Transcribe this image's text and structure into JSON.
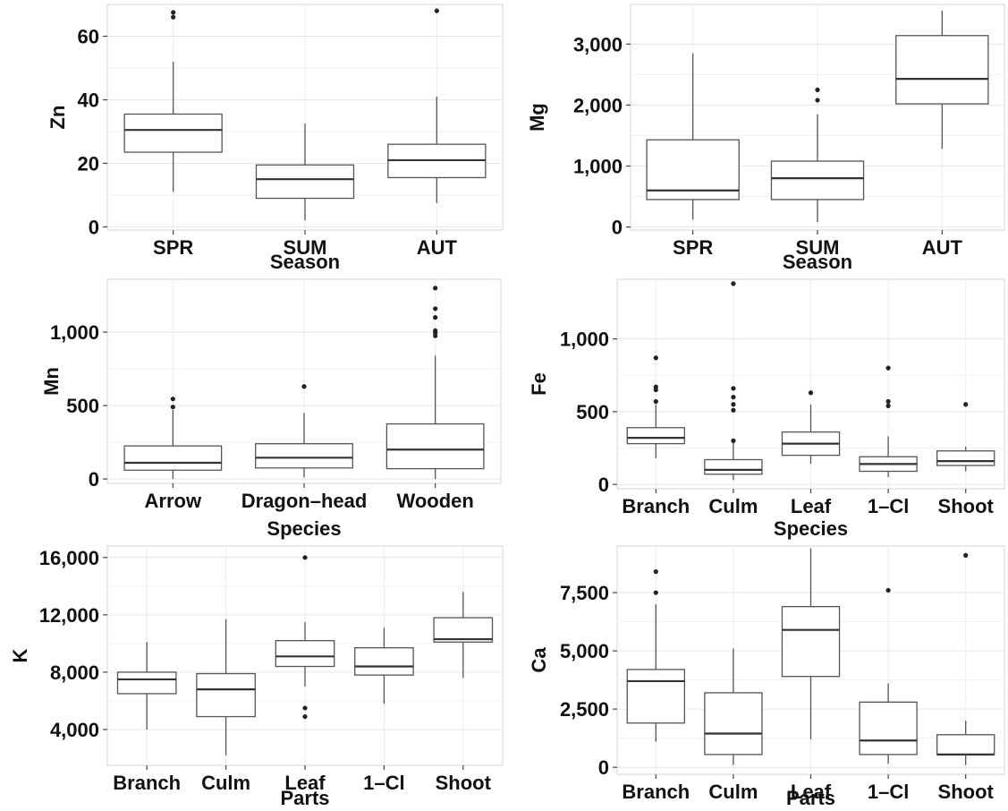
{
  "chart_data": [
    {
      "type": "box",
      "title": "",
      "xlabel": "Season",
      "ylabel": "Zn",
      "ylim": [
        -1,
        70
      ],
      "yticks": [
        0,
        20,
        40,
        60
      ],
      "ytick_labels": [
        "0",
        "20",
        "40",
        "60"
      ],
      "grid": true,
      "categories": [
        "SPR",
        "SUM",
        "AUT"
      ],
      "boxes": [
        {
          "q1": 23.5,
          "median": 30.5,
          "q3": 35.5,
          "whisker_low": 11,
          "whisker_high": 52,
          "outliers": [
            66,
            67.5
          ]
        },
        {
          "q1": 9,
          "median": 15,
          "q3": 19.5,
          "whisker_low": 2,
          "whisker_high": 32.5,
          "outliers": []
        },
        {
          "q1": 15.5,
          "median": 21,
          "q3": 26,
          "whisker_low": 7.5,
          "whisker_high": 41,
          "outliers": [
            68
          ]
        }
      ]
    },
    {
      "type": "box",
      "title": "",
      "xlabel": "Season",
      "ylabel": "Mg",
      "ylim": [
        -50,
        3650
      ],
      "yticks": [
        0,
        1000,
        2000,
        3000
      ],
      "ytick_labels": [
        "0",
        "1,000",
        "2,000",
        "3,000"
      ],
      "grid": true,
      "categories": [
        "SPR",
        "SUM",
        "AUT"
      ],
      "boxes": [
        {
          "q1": 450,
          "median": 600,
          "q3": 1430,
          "whisker_low": 120,
          "whisker_high": 2850,
          "outliers": []
        },
        {
          "q1": 450,
          "median": 800,
          "q3": 1080,
          "whisker_low": 80,
          "whisker_high": 1850,
          "outliers": [
            2080,
            2250
          ]
        },
        {
          "q1": 2020,
          "median": 2430,
          "q3": 3140,
          "whisker_low": 1280,
          "whisker_high": 3550,
          "outliers": []
        }
      ]
    },
    {
      "type": "box",
      "title": "",
      "xlabel": "Species",
      "ylabel": "Mn",
      "ylim": [
        -30,
        1360
      ],
      "yticks": [
        0,
        500,
        1000
      ],
      "ytick_labels": [
        "0",
        "500",
        "1,000"
      ],
      "grid": true,
      "categories": [
        "Arrow",
        "Dragon–head",
        "Wooden"
      ],
      "boxes": [
        {
          "q1": 60,
          "median": 110,
          "q3": 225,
          "whisker_low": 0,
          "whisker_high": 470,
          "outliers": [
            490,
            545
          ]
        },
        {
          "q1": 75,
          "median": 145,
          "q3": 240,
          "whisker_low": 10,
          "whisker_high": 450,
          "outliers": [
            630
          ]
        },
        {
          "q1": 70,
          "median": 200,
          "q3": 375,
          "whisker_low": 0,
          "whisker_high": 840,
          "outliers": [
            975,
            995,
            1010,
            1100,
            1160,
            1300
          ]
        }
      ]
    },
    {
      "type": "box",
      "title": "",
      "xlabel": "Species",
      "ylabel": "Fe",
      "ylim": [
        -30,
        1410
      ],
      "yticks": [
        0,
        500,
        1000
      ],
      "ytick_labels": [
        "0",
        "500",
        "1,000"
      ],
      "grid": true,
      "categories": [
        "Branch",
        "Culm",
        "Leaf",
        "1–Cl",
        "Shoot"
      ],
      "boxes": [
        {
          "q1": 280,
          "median": 320,
          "q3": 390,
          "whisker_low": 180,
          "whisker_high": 550,
          "outliers": [
            570,
            650,
            670,
            870
          ]
        },
        {
          "q1": 70,
          "median": 100,
          "q3": 170,
          "whisker_low": 30,
          "whisker_high": 300,
          "outliers": [
            300,
            510,
            550,
            600,
            660,
            1380
          ]
        },
        {
          "q1": 200,
          "median": 280,
          "q3": 360,
          "whisker_low": 140,
          "whisker_high": 550,
          "outliers": [
            630
          ]
        },
        {
          "q1": 90,
          "median": 140,
          "q3": 190,
          "whisker_low": 50,
          "whisker_high": 330,
          "outliers": [
            540,
            570,
            800
          ]
        },
        {
          "q1": 130,
          "median": 160,
          "q3": 230,
          "whisker_low": 90,
          "whisker_high": 260,
          "outliers": [
            550
          ]
        }
      ]
    },
    {
      "type": "box",
      "title": "",
      "xlabel": "Parts",
      "ylabel": "K",
      "ylim": [
        1500,
        16800
      ],
      "yticks": [
        4000,
        8000,
        12000,
        16000
      ],
      "ytick_labels": [
        "4,000",
        "8,000",
        "12,000",
        "16,000"
      ],
      "grid": true,
      "categories": [
        "Branch",
        "Culm",
        "Leaf",
        "1–Cl",
        "Shoot"
      ],
      "boxes": [
        {
          "q1": 6500,
          "median": 7500,
          "q3": 8000,
          "whisker_low": 4000,
          "whisker_high": 10100,
          "outliers": []
        },
        {
          "q1": 4900,
          "median": 6800,
          "q3": 7900,
          "whisker_low": 2200,
          "whisker_high": 11700,
          "outliers": []
        },
        {
          "q1": 8400,
          "median": 9100,
          "q3": 10200,
          "whisker_low": 7000,
          "whisker_high": 11500,
          "outliers": [
            4900,
            5500,
            16000
          ]
        },
        {
          "q1": 7800,
          "median": 8400,
          "q3": 9700,
          "whisker_low": 5800,
          "whisker_high": 11100,
          "outliers": []
        },
        {
          "q1": 10100,
          "median": 10300,
          "q3": 11800,
          "whisker_low": 7600,
          "whisker_high": 13600,
          "outliers": []
        }
      ]
    },
    {
      "type": "box",
      "title": "",
      "xlabel": "Parts",
      "ylabel": "Ca",
      "ylim": [
        -300,
        9500
      ],
      "yticks": [
        0,
        2500,
        5000,
        7500
      ],
      "ytick_labels": [
        "0",
        "2,500",
        "5,000",
        "7,500"
      ],
      "grid": true,
      "categories": [
        "Branch",
        "Culm",
        "Leaf",
        "1–Cl",
        "Shoot"
      ],
      "boxes": [
        {
          "q1": 1900,
          "median": 3700,
          "q3": 4200,
          "whisker_low": 1100,
          "whisker_high": 7000,
          "outliers": [
            7500,
            8400
          ]
        },
        {
          "q1": 550,
          "median": 1450,
          "q3": 3200,
          "whisker_low": 100,
          "whisker_high": 5100,
          "outliers": []
        },
        {
          "q1": 3900,
          "median": 5900,
          "q3": 6900,
          "whisker_low": 1200,
          "whisker_high": 9400,
          "outliers": []
        },
        {
          "q1": 550,
          "median": 1150,
          "q3": 2800,
          "whisker_low": 150,
          "whisker_high": 3600,
          "outliers": [
            7600
          ]
        },
        {
          "q1": 550,
          "median": 550,
          "q3": 1400,
          "whisker_low": 100,
          "whisker_high": 2000,
          "outliers": [
            9100
          ]
        }
      ]
    }
  ]
}
